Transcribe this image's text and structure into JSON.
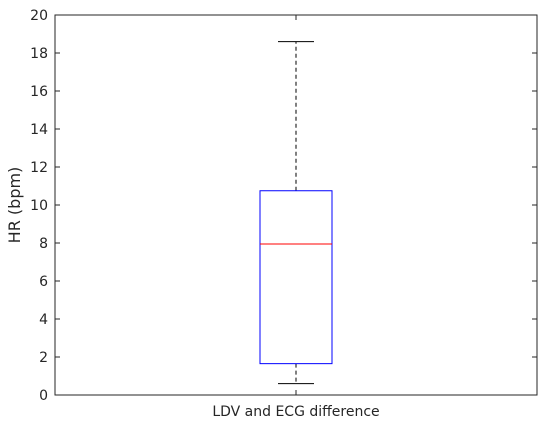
{
  "chart_data": {
    "type": "box",
    "ylabel": "HR (bpm)",
    "ylim": [
      0,
      20
    ],
    "yticks": [
      "0",
      "2",
      "4",
      "6",
      "8",
      "10",
      "12",
      "14",
      "16",
      "18",
      "20"
    ],
    "categories": [
      "LDV and ECG difference"
    ],
    "box": {
      "whisker_low": 0.6,
      "q1": 1.65,
      "median": 7.95,
      "q3": 10.75,
      "whisker_high": 18.6
    },
    "grid": false,
    "colors": {
      "box": "#0000ff",
      "median": "#ff0000",
      "whisker": "#000000",
      "axes": "#262626"
    }
  }
}
